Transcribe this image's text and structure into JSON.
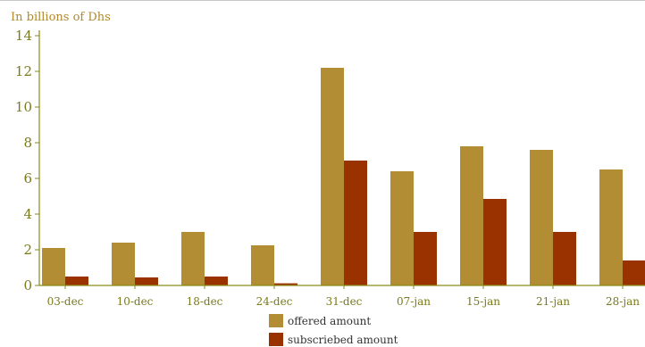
{
  "chart_data": {
    "type": "bar",
    "title": "",
    "ylabel": "In billions of Dhs",
    "xlabel": "",
    "categories": [
      "03-dec",
      "10-dec",
      "18-dec",
      "24-dec",
      "31-dec",
      "07-jan",
      "15-jan",
      "21-jan",
      "28-jan"
    ],
    "series": [
      {
        "name": "offered amount",
        "color": "#b38d33",
        "values": [
          2.1,
          2.4,
          3.0,
          2.25,
          12.2,
          6.4,
          7.8,
          7.6,
          6.5
        ]
      },
      {
        "name": "subscriebed amount",
        "color": "#9a3200",
        "values": [
          0.5,
          0.45,
          0.5,
          0.12,
          7.0,
          3.0,
          4.85,
          3.0,
          1.4
        ]
      }
    ],
    "ylim": [
      0,
      14
    ],
    "yticks": [
      0,
      2,
      4,
      6,
      8,
      10,
      12,
      14
    ],
    "grid": false,
    "legend": "bottom"
  }
}
